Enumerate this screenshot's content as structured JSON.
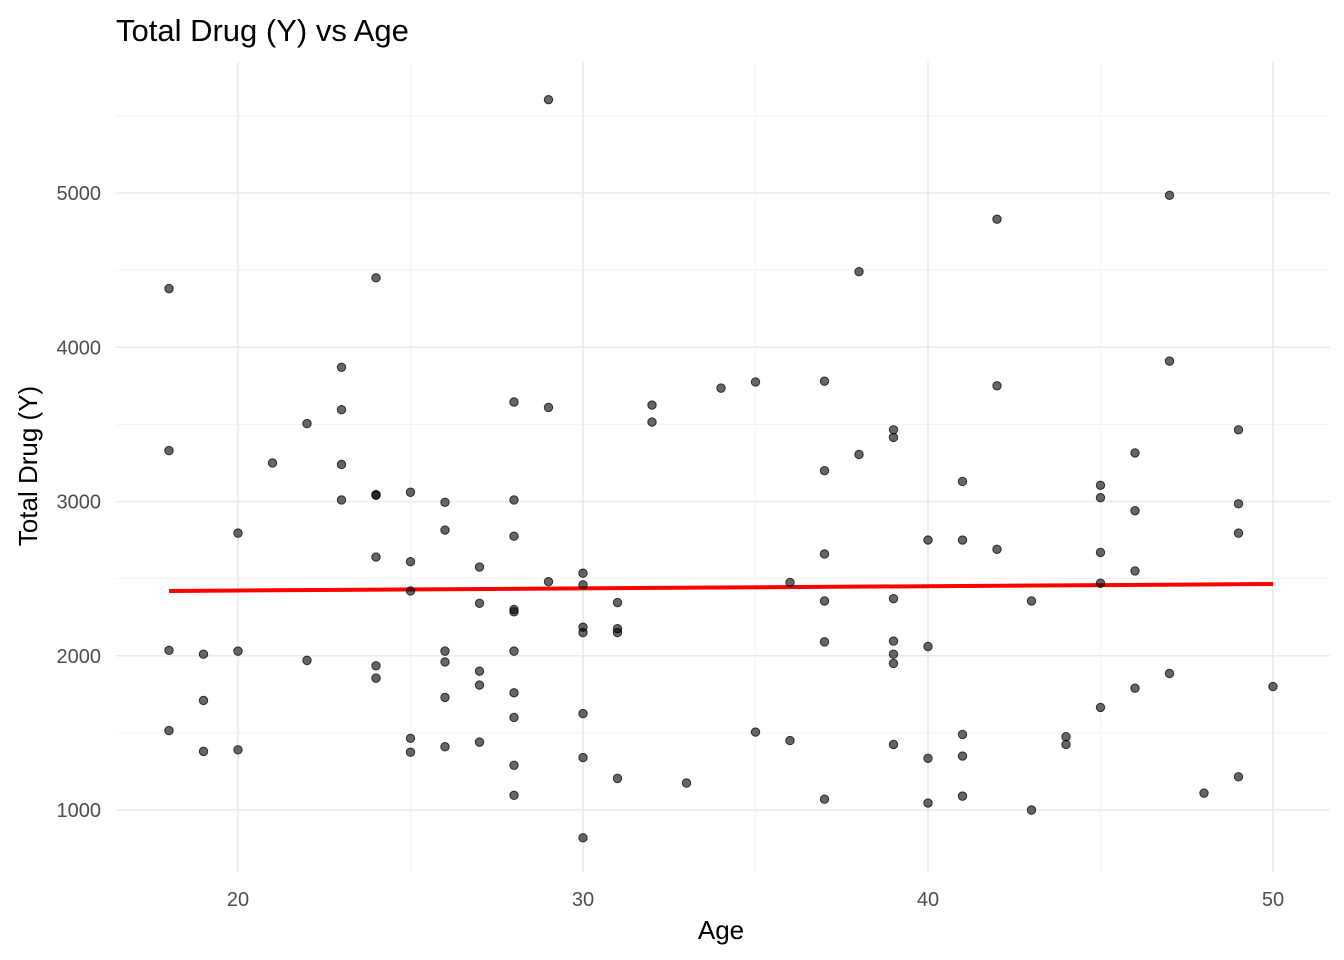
{
  "chart_data": {
    "type": "scatter",
    "title": "Total Drug (Y) vs Age",
    "xlabel": "Age",
    "ylabel": "Total Drug (Y)",
    "xlim": [
      16.4,
      51.6
    ],
    "ylim": [
      600,
      5800
    ],
    "x_ticks": [
      20,
      30,
      40,
      50
    ],
    "y_ticks": [
      1000,
      2000,
      3000,
      4000,
      5000
    ],
    "x_tick_labels": [
      "20",
      "30",
      "40",
      "50"
    ],
    "y_tick_labels": [
      "1000",
      "2000",
      "3000",
      "4000",
      "5000"
    ],
    "grid": true,
    "colors": {
      "points": "#000000",
      "fit_line": "#ff0000",
      "grid": "#ebebeb"
    },
    "fit_line": {
      "x": [
        18,
        50
      ],
      "y": [
        2420,
        2465
      ]
    },
    "points": [
      [
        18,
        4380
      ],
      [
        18,
        3330
      ],
      [
        18,
        2035
      ],
      [
        18,
        1515
      ],
      [
        19,
        2010
      ],
      [
        19,
        1710
      ],
      [
        19,
        1380
      ],
      [
        20,
        2795
      ],
      [
        20,
        2030
      ],
      [
        20,
        1390
      ],
      [
        21,
        3250
      ],
      [
        22,
        3505
      ],
      [
        22,
        1970
      ],
      [
        23,
        3870
      ],
      [
        23,
        3595
      ],
      [
        23,
        3240
      ],
      [
        23,
        3010
      ],
      [
        24,
        4450
      ],
      [
        24,
        3045
      ],
      [
        24,
        3040
      ],
      [
        24,
        2640
      ],
      [
        24,
        1935
      ],
      [
        24,
        1855
      ],
      [
        25,
        3060
      ],
      [
        25,
        2610
      ],
      [
        25,
        2420
      ],
      [
        25,
        1465
      ],
      [
        25,
        1375
      ],
      [
        26,
        2995
      ],
      [
        26,
        2815
      ],
      [
        26,
        2030
      ],
      [
        26,
        1960
      ],
      [
        26,
        1730
      ],
      [
        26,
        1410
      ],
      [
        27,
        2575
      ],
      [
        27,
        2340
      ],
      [
        27,
        1900
      ],
      [
        27,
        1810
      ],
      [
        27,
        1440
      ],
      [
        28,
        3645
      ],
      [
        28,
        3010
      ],
      [
        28,
        2775
      ],
      [
        28,
        2300
      ],
      [
        28,
        2285
      ],
      [
        28,
        2030
      ],
      [
        28,
        1760
      ],
      [
        28,
        1600
      ],
      [
        28,
        1290
      ],
      [
        28,
        1095
      ],
      [
        29,
        5605
      ],
      [
        29,
        3610
      ],
      [
        29,
        2480
      ],
      [
        30,
        2535
      ],
      [
        30,
        2460
      ],
      [
        30,
        2185
      ],
      [
        30,
        2150
      ],
      [
        30,
        1625
      ],
      [
        30,
        1340
      ],
      [
        30,
        820
      ],
      [
        31,
        2345
      ],
      [
        31,
        2175
      ],
      [
        31,
        2150
      ],
      [
        31,
        1205
      ],
      [
        32,
        3625
      ],
      [
        32,
        3515
      ],
      [
        33,
        1175
      ],
      [
        34,
        3735
      ],
      [
        35,
        3775
      ],
      [
        35,
        1505
      ],
      [
        36,
        2475
      ],
      [
        36,
        1450
      ],
      [
        37,
        3780
      ],
      [
        37,
        3200
      ],
      [
        37,
        2660
      ],
      [
        37,
        2355
      ],
      [
        37,
        2090
      ],
      [
        37,
        1070
      ],
      [
        38,
        4490
      ],
      [
        38,
        3305
      ],
      [
        39,
        3465
      ],
      [
        39,
        3415
      ],
      [
        39,
        2370
      ],
      [
        39,
        2095
      ],
      [
        39,
        2010
      ],
      [
        39,
        1950
      ],
      [
        39,
        1425
      ],
      [
        40,
        2750
      ],
      [
        40,
        2060
      ],
      [
        40,
        1335
      ],
      [
        40,
        1045
      ],
      [
        41,
        3130
      ],
      [
        41,
        2750
      ],
      [
        41,
        1490
      ],
      [
        41,
        1350
      ],
      [
        41,
        1090
      ],
      [
        42,
        4830
      ],
      [
        42,
        3750
      ],
      [
        42,
        2690
      ],
      [
        43,
        2355
      ],
      [
        43,
        1000
      ],
      [
        44,
        1475
      ],
      [
        44,
        1425
      ],
      [
        45,
        3105
      ],
      [
        45,
        3025
      ],
      [
        45,
        2670
      ],
      [
        45,
        2470
      ],
      [
        45,
        1665
      ],
      [
        46,
        3315
      ],
      [
        46,
        2940
      ],
      [
        46,
        2550
      ],
      [
        46,
        1790
      ],
      [
        47,
        4985
      ],
      [
        47,
        3910
      ],
      [
        47,
        1885
      ],
      [
        48,
        1110
      ],
      [
        49,
        3465
      ],
      [
        49,
        2985
      ],
      [
        49,
        2795
      ],
      [
        49,
        1215
      ],
      [
        50,
        1800
      ]
    ]
  }
}
